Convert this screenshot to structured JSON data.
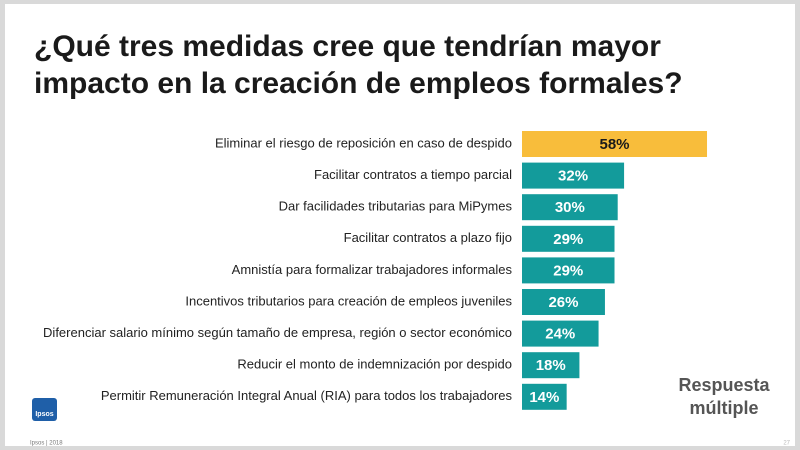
{
  "chart_data": {
    "type": "bar",
    "orientation": "horizontal",
    "title": [
      "¿Qué tres medidas cree que tendrían mayor",
      "impacto en la creación de empleos formales?"
    ],
    "categories": [
      "Eliminar el riesgo de reposición en caso de despido",
      "Facilitar contratos a tiempo parcial",
      "Dar facilidades tributarias para MiPymes",
      "Facilitar contratos a plazo fijo",
      "Amnistía para formalizar trabajadores informales",
      "Incentivos tributarios para creación de empleos juveniles",
      "Diferenciar salario mínimo según tamaño de empresa, región o sector económico",
      "Reducir el monto de indemnización por despido",
      "Permitir Remuneración Integral Anual (RIA) para todos los trabajadores"
    ],
    "values": [
      58,
      32,
      30,
      29,
      29,
      26,
      24,
      18,
      14
    ],
    "value_labels": [
      "58%",
      "32%",
      "30%",
      "29%",
      "29%",
      "26%",
      "24%",
      "18%",
      "14%"
    ],
    "colors": [
      "#f8bd3b",
      "#139b9b",
      "#139b9b",
      "#139b9b",
      "#139b9b",
      "#139b9b",
      "#139b9b",
      "#139b9b",
      "#139b9b"
    ],
    "value_label_colors": [
      "#1a1a1a",
      "#ffffff",
      "#ffffff",
      "#ffffff",
      "#ffffff",
      "#ffffff",
      "#ffffff",
      "#ffffff",
      "#ffffff"
    ],
    "annotation": [
      "Respuesta",
      "múltiple"
    ]
  },
  "logo": "Ipsos",
  "footer": "Ipsos | 2018",
  "page_number": "27"
}
